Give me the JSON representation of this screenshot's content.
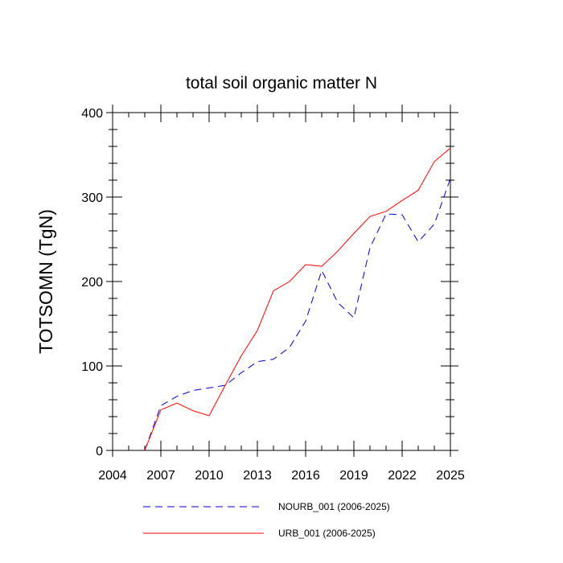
{
  "chart_data": {
    "type": "line",
    "title": "total soil organic matter N",
    "xlabel": "",
    "ylabel": "TOTSOMN  (TgN)",
    "xlim": [
      2004,
      2025
    ],
    "ylim": [
      0,
      400
    ],
    "xticks": [
      2004,
      2007,
      2010,
      2013,
      2016,
      2019,
      2022,
      2025
    ],
    "yticks": [
      0,
      100,
      200,
      300,
      400
    ],
    "x": [
      2006,
      2007,
      2008,
      2009,
      2010,
      2011,
      2012,
      2013,
      2014,
      2015,
      2016,
      2017,
      2018,
      2019,
      2020,
      2021,
      2022,
      2023,
      2024,
      2025
    ],
    "series": [
      {
        "name": "NOURB_001 (2006-2025)",
        "color": "#0000cc",
        "dash": "dashed",
        "values": [
          0,
          53,
          64,
          71,
          74,
          77,
          92,
          105,
          108,
          122,
          153,
          213,
          175,
          157,
          240,
          280,
          279,
          247,
          268,
          322
        ]
      },
      {
        "name": "URB_001 (2006-2025)",
        "color": "#ff0000",
        "dash": "solid",
        "values": [
          0,
          48,
          56,
          47,
          41,
          77,
          112,
          142,
          189,
          200,
          220,
          218,
          236,
          257,
          277,
          283,
          296,
          308,
          342,
          358
        ]
      }
    ]
  }
}
